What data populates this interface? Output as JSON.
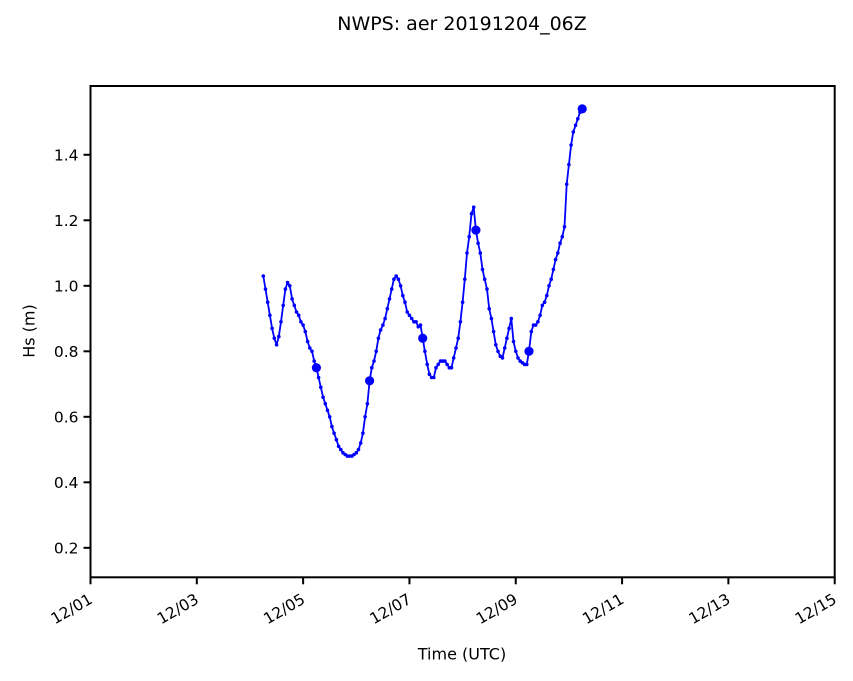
{
  "chart_data": {
    "type": "line",
    "title": "NWPS: aer 20191204_06Z",
    "xlabel": "Time (UTC)",
    "ylabel": "Hs (m)",
    "grid": false,
    "legend": "none",
    "frame_color": "#000000",
    "background_color": "#ffffff",
    "xlim_days": [
      1,
      15
    ],
    "ylim": [
      0.11,
      1.61
    ],
    "x_ticks": {
      "days": [
        1,
        3,
        5,
        7,
        9,
        11,
        13,
        15
      ],
      "labels": [
        "12/01",
        "12/03",
        "12/05",
        "12/07",
        "12/09",
        "12/11",
        "12/13",
        "12/15"
      ],
      "rotation_deg": 30
    },
    "y_ticks": {
      "values": [
        0.2,
        0.4,
        0.6,
        0.8,
        1.0,
        1.2,
        1.4
      ],
      "labels": [
        "0.2",
        "0.4",
        "0.6",
        "0.8",
        "1.0",
        "1.2",
        "1.4"
      ]
    },
    "series": [
      {
        "name": "Hs",
        "color": "#0000ff",
        "marker": "dot",
        "start_label": "12/04 06:00Z",
        "start_day": 4.25,
        "time_step_hours": 1,
        "big_marker_indices": [
          24,
          48,
          72,
          96,
          120,
          144
        ],
        "big_marker_labels": [
          "12/05 06Z",
          "12/06 06Z",
          "12/07 06Z",
          "12/08 06Z",
          "12/09 06Z",
          "12/10 06Z"
        ],
        "values": [
          1.03,
          0.99,
          0.95,
          0.91,
          0.87,
          0.84,
          0.82,
          0.845,
          0.89,
          0.94,
          0.99,
          1.01,
          1.0,
          0.96,
          0.94,
          0.92,
          0.91,
          0.89,
          0.88,
          0.86,
          0.83,
          0.81,
          0.8,
          0.77,
          0.75,
          0.72,
          0.69,
          0.66,
          0.64,
          0.62,
          0.6,
          0.57,
          0.55,
          0.53,
          0.51,
          0.5,
          0.49,
          0.485,
          0.48,
          0.48,
          0.48,
          0.485,
          0.49,
          0.5,
          0.52,
          0.55,
          0.6,
          0.64,
          0.71,
          0.75,
          0.77,
          0.8,
          0.84,
          0.865,
          0.88,
          0.9,
          0.93,
          0.96,
          0.99,
          1.02,
          1.03,
          1.02,
          1.0,
          0.97,
          0.95,
          0.92,
          0.91,
          0.9,
          0.89,
          0.89,
          0.875,
          0.88,
          0.84,
          0.8,
          0.76,
          0.73,
          0.72,
          0.72,
          0.75,
          0.76,
          0.77,
          0.77,
          0.77,
          0.76,
          0.75,
          0.75,
          0.78,
          0.81,
          0.84,
          0.89,
          0.95,
          1.02,
          1.1,
          1.15,
          1.22,
          1.24,
          1.17,
          1.13,
          1.1,
          1.05,
          1.02,
          0.99,
          0.93,
          0.9,
          0.86,
          0.82,
          0.8,
          0.785,
          0.78,
          0.81,
          0.84,
          0.87,
          0.9,
          0.83,
          0.8,
          0.78,
          0.77,
          0.765,
          0.76,
          0.76,
          0.8,
          0.86,
          0.88,
          0.88,
          0.89,
          0.91,
          0.94,
          0.95,
          0.97,
          1.0,
          1.02,
          1.05,
          1.08,
          1.1,
          1.13,
          1.15,
          1.18,
          1.31,
          1.37,
          1.43,
          1.47,
          1.49,
          1.51,
          1.53,
          1.54
        ]
      }
    ]
  }
}
